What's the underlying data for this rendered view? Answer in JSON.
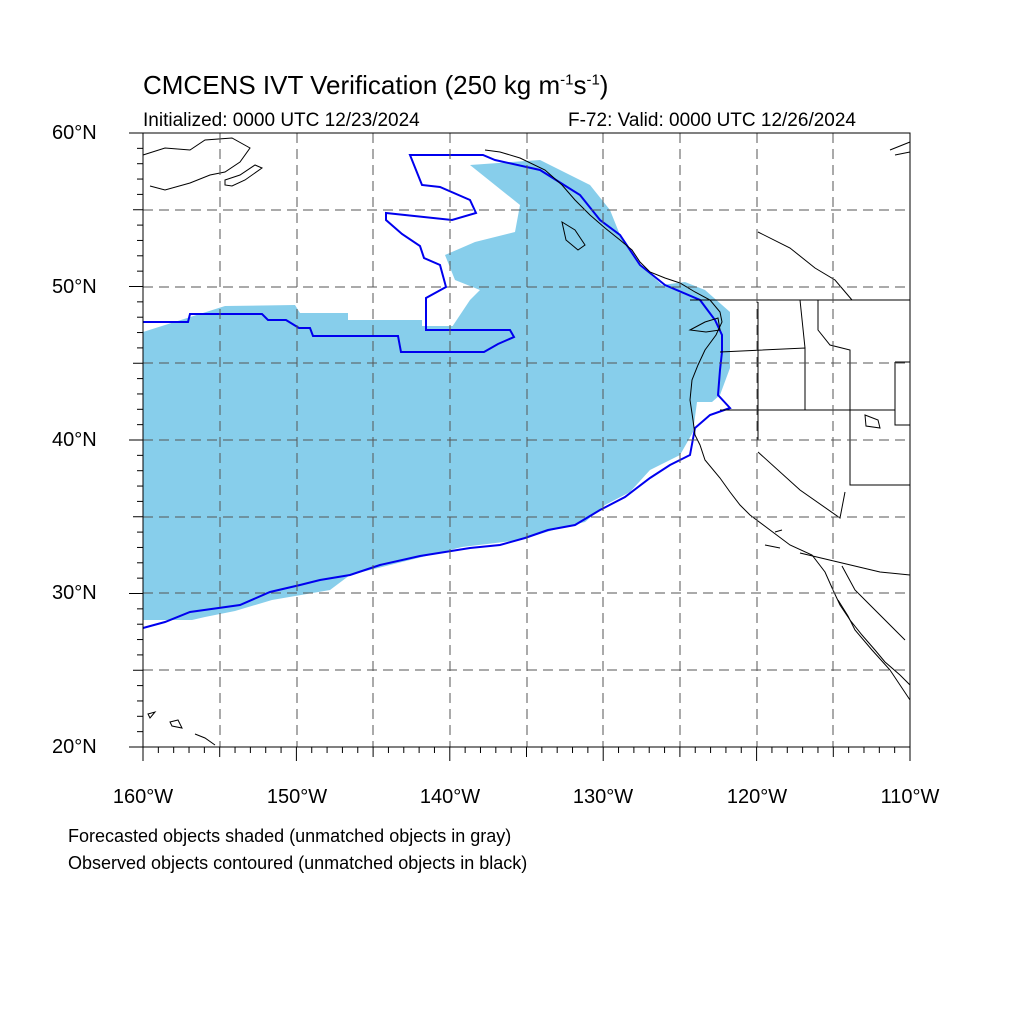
{
  "title": {
    "main": "CMCENS IVT Verification (250 kg m",
    "sup1": "-1",
    "mid": "s",
    "sup2": "-1",
    "end": ")"
  },
  "subtitle_left": "Initialized: 0000 UTC 12/23/2024",
  "subtitle_right": "F-72: Valid: 0000 UTC 12/26/2024",
  "lat_labels": [
    "60°N",
    "50°N",
    "40°N",
    "30°N",
    "20°N"
  ],
  "lon_labels": [
    "160°W",
    "150°W",
    "140°W",
    "130°W",
    "120°W",
    "110°W"
  ],
  "footnotes": [
    "Forecasted objects shaded (unmatched objects in gray)",
    "Observed objects contoured (unmatched objects in black)"
  ],
  "colors": {
    "forecast_fill": "#87ceeb",
    "observed_contour": "#0000ee",
    "grid": "#555555",
    "coastline": "#000000"
  }
}
